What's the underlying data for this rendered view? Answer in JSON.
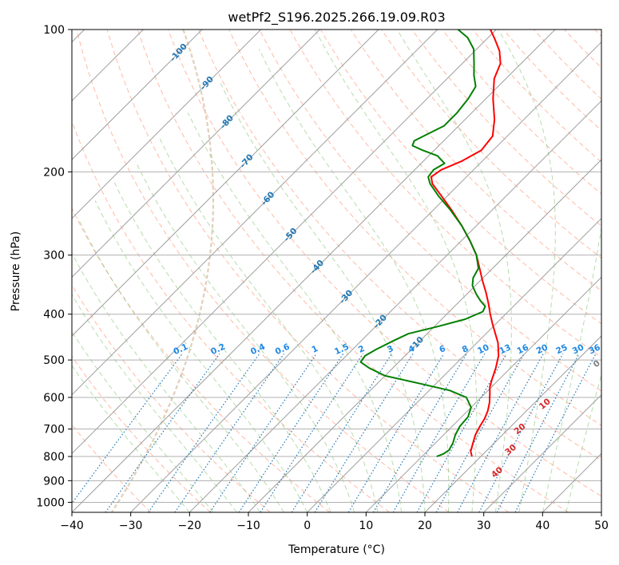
{
  "chart_data": {
    "type": "line",
    "title": "wetPf2_S196.2025.266.19.09.R03",
    "xlabel": "Temperature (°C)",
    "ylabel": "Pressure (hPa)",
    "xlim": [
      -40,
      50
    ],
    "ylim": [
      1050,
      100
    ],
    "y_scale": "log",
    "skew": "skew-T log-p",
    "x_ticks": [
      "−40",
      "−30",
      "−20",
      "−10",
      "0",
      "10",
      "20",
      "30",
      "40",
      "50"
    ],
    "x_tick_values": [
      -40,
      -30,
      -20,
      -10,
      0,
      10,
      20,
      30,
      40,
      50
    ],
    "y_ticks": [
      "100",
      "200",
      "300",
      "400",
      "500",
      "600",
      "700",
      "800",
      "900",
      "1000"
    ],
    "y_tick_values": [
      100,
      200,
      300,
      400,
      500,
      600,
      700,
      800,
      900,
      1000
    ],
    "grid": true,
    "colors": {
      "temperature": "#ff0000",
      "dewpoint": "#008000",
      "dry_adiabat": "#ff8c69",
      "moist_adiabat": "#7cbf6a",
      "mixing_ratio": "#1f77b4",
      "isotherm_label": "#1f77b4",
      "mixing_label": "#1e88e5",
      "wetbulb_label_pos": "#d62728",
      "wetbulb_label_zero": "#808080",
      "isotherm": "#9e9e9e",
      "isobar": "#b0b0b0",
      "far_curve": "#c8a882"
    },
    "series": [
      {
        "name": "Temperature",
        "color": "#ff0000",
        "points": [
          {
            "p": 800,
            "t": 18.5
          },
          {
            "p": 780,
            "t": 17.4
          },
          {
            "p": 750,
            "t": 16.4
          },
          {
            "p": 720,
            "t": 15.4
          },
          {
            "p": 690,
            "t": 14.7
          },
          {
            "p": 665,
            "t": 14.2
          },
          {
            "p": 640,
            "t": 13.4
          },
          {
            "p": 615,
            "t": 12.3
          },
          {
            "p": 590,
            "t": 10.9
          },
          {
            "p": 570,
            "t": 9.7
          },
          {
            "p": 550,
            "t": 8.8
          },
          {
            "p": 520,
            "t": 7.5
          },
          {
            "p": 490,
            "t": 5.9
          },
          {
            "p": 460,
            "t": 3.6
          },
          {
            "p": 440,
            "t": 1.6
          },
          {
            "p": 420,
            "t": -0.5
          },
          {
            "p": 400,
            "t": -2.6
          },
          {
            "p": 380,
            "t": -4.7
          },
          {
            "p": 360,
            "t": -7.0
          },
          {
            "p": 340,
            "t": -9.6
          },
          {
            "p": 320,
            "t": -12.2
          },
          {
            "p": 300,
            "t": -15.0
          },
          {
            "p": 280,
            "t": -18.5
          },
          {
            "p": 260,
            "t": -22.5
          },
          {
            "p": 240,
            "t": -27.1
          },
          {
            "p": 225,
            "t": -31.0
          },
          {
            "p": 212,
            "t": -34.6
          },
          {
            "p": 205,
            "t": -36.0
          },
          {
            "p": 198,
            "t": -35.5
          },
          {
            "p": 190,
            "t": -33.5
          },
          {
            "p": 180,
            "t": -32.0
          },
          {
            "p": 168,
            "t": -32.5
          },
          {
            "p": 155,
            "t": -35.0
          },
          {
            "p": 140,
            "t": -38.8
          },
          {
            "p": 127,
            "t": -42.0
          },
          {
            "p": 118,
            "t": -43.5
          },
          {
            "p": 111,
            "t": -45.8
          },
          {
            "p": 105,
            "t": -48.5
          },
          {
            "p": 100,
            "t": -51.0
          }
        ]
      },
      {
        "name": "Dewpoint",
        "color": "#008000",
        "points": [
          {
            "p": 800,
            "t": 12.5
          },
          {
            "p": 790,
            "t": 13.2
          },
          {
            "p": 775,
            "t": 13.5
          },
          {
            "p": 750,
            "t": 13.0
          },
          {
            "p": 720,
            "t": 12.0
          },
          {
            "p": 690,
            "t": 11.3
          },
          {
            "p": 660,
            "t": 11.1
          },
          {
            "p": 630,
            "t": 10.0
          },
          {
            "p": 600,
            "t": 7.5
          },
          {
            "p": 580,
            "t": 3.5
          },
          {
            "p": 560,
            "t": -3.0
          },
          {
            "p": 540,
            "t": -10.0
          },
          {
            "p": 520,
            "t": -14.0
          },
          {
            "p": 505,
            "t": -16.5
          },
          {
            "p": 490,
            "t": -16.8
          },
          {
            "p": 475,
            "t": -16.0
          },
          {
            "p": 455,
            "t": -14.5
          },
          {
            "p": 440,
            "t": -13.2
          },
          {
            "p": 425,
            "t": -9.5
          },
          {
            "p": 410,
            "t": -6.0
          },
          {
            "p": 395,
            "t": -4.3
          },
          {
            "p": 385,
            "t": -4.8
          },
          {
            "p": 375,
            "t": -6.5
          },
          {
            "p": 362,
            "t": -8.5
          },
          {
            "p": 348,
            "t": -10.5
          },
          {
            "p": 335,
            "t": -11.7
          },
          {
            "p": 320,
            "t": -12.4
          },
          {
            "p": 300,
            "t": -15.0
          },
          {
            "p": 280,
            "t": -18.5
          },
          {
            "p": 260,
            "t": -22.5
          },
          {
            "p": 240,
            "t": -27.3
          },
          {
            "p": 225,
            "t": -31.5
          },
          {
            "p": 212,
            "t": -35.0
          },
          {
            "p": 205,
            "t": -36.5
          },
          {
            "p": 198,
            "t": -36.8
          },
          {
            "p": 192,
            "t": -36.0
          },
          {
            "p": 185,
            "t": -38.5
          },
          {
            "p": 180,
            "t": -42.0
          },
          {
            "p": 176,
            "t": -44.5
          },
          {
            "p": 172,
            "t": -45.0
          },
          {
            "p": 167,
            "t": -44.0
          },
          {
            "p": 160,
            "t": -42.5
          },
          {
            "p": 150,
            "t": -42.5
          },
          {
            "p": 140,
            "t": -43.0
          },
          {
            "p": 132,
            "t": -43.8
          },
          {
            "p": 125,
            "t": -46.0
          },
          {
            "p": 118,
            "t": -48.0
          },
          {
            "p": 110,
            "t": -50.5
          },
          {
            "p": 104,
            "t": -53.5
          },
          {
            "p": 100,
            "t": -56.5
          }
        ]
      }
    ],
    "isotherm_labels": [
      "-100",
      "-90",
      "-80",
      "-70",
      "-60",
      "-50",
      "-40",
      "-30",
      "-20",
      "-10"
    ],
    "isotherm_label_values": [
      -100,
      -90,
      -80,
      -70,
      -60,
      -50,
      -40,
      -30,
      -20,
      -10
    ],
    "mixing_ratio_labels": [
      "0.1",
      "0.2",
      "0.4",
      "0.6",
      "1",
      "1.5",
      "2",
      "3",
      "4",
      "6",
      "8",
      "10",
      "13",
      "16",
      "20",
      "25",
      "30",
      "36"
    ],
    "mixing_ratio_label_values": [
      0.1,
      0.2,
      0.4,
      0.6,
      1,
      1.5,
      2,
      3,
      4,
      6,
      8,
      10,
      13,
      16,
      20,
      25,
      30,
      36
    ],
    "wetbulb_labels": [
      "0",
      "10",
      "20",
      "30",
      "40"
    ],
    "wetbulb_label_values": [
      0,
      10,
      20,
      30,
      40
    ]
  }
}
